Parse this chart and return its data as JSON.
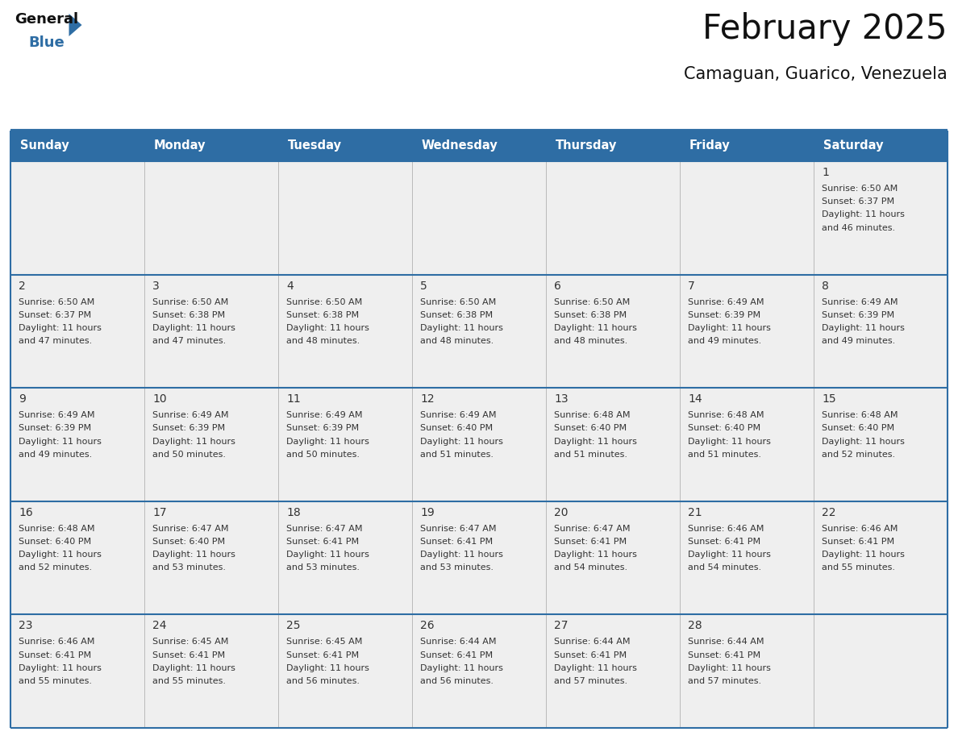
{
  "title": "February 2025",
  "subtitle": "Camaguan, Guarico, Venezuela",
  "days_of_week": [
    "Sunday",
    "Monday",
    "Tuesday",
    "Wednesday",
    "Thursday",
    "Friday",
    "Saturday"
  ],
  "header_bg": "#2E6DA4",
  "header_text": "#FFFFFF",
  "cell_bg": "#EFEFEF",
  "cell_bg_empty": "#FFFFFF",
  "separator_color": "#2E6DA4",
  "inner_line_color": "#CCCCCC",
  "day_number_color": "#333333",
  "cell_text_color": "#333333",
  "title_color": "#111111",
  "subtitle_color": "#111111",
  "logo_general_color": "#111111",
  "logo_blue_color": "#2E6DA4",
  "weeks": [
    [
      null,
      null,
      null,
      null,
      null,
      null,
      {
        "day": 1,
        "sunrise": "6:50 AM",
        "sunset": "6:37 PM",
        "daylight": "11 hours and 46 minutes."
      }
    ],
    [
      {
        "day": 2,
        "sunrise": "6:50 AM",
        "sunset": "6:37 PM",
        "daylight": "11 hours and 47 minutes."
      },
      {
        "day": 3,
        "sunrise": "6:50 AM",
        "sunset": "6:38 PM",
        "daylight": "11 hours and 47 minutes."
      },
      {
        "day": 4,
        "sunrise": "6:50 AM",
        "sunset": "6:38 PM",
        "daylight": "11 hours and 48 minutes."
      },
      {
        "day": 5,
        "sunrise": "6:50 AM",
        "sunset": "6:38 PM",
        "daylight": "11 hours and 48 minutes."
      },
      {
        "day": 6,
        "sunrise": "6:50 AM",
        "sunset": "6:38 PM",
        "daylight": "11 hours and 48 minutes."
      },
      {
        "day": 7,
        "sunrise": "6:49 AM",
        "sunset": "6:39 PM",
        "daylight": "11 hours and 49 minutes."
      },
      {
        "day": 8,
        "sunrise": "6:49 AM",
        "sunset": "6:39 PM",
        "daylight": "11 hours and 49 minutes."
      }
    ],
    [
      {
        "day": 9,
        "sunrise": "6:49 AM",
        "sunset": "6:39 PM",
        "daylight": "11 hours and 49 minutes."
      },
      {
        "day": 10,
        "sunrise": "6:49 AM",
        "sunset": "6:39 PM",
        "daylight": "11 hours and 50 minutes."
      },
      {
        "day": 11,
        "sunrise": "6:49 AM",
        "sunset": "6:39 PM",
        "daylight": "11 hours and 50 minutes."
      },
      {
        "day": 12,
        "sunrise": "6:49 AM",
        "sunset": "6:40 PM",
        "daylight": "11 hours and 51 minutes."
      },
      {
        "day": 13,
        "sunrise": "6:48 AM",
        "sunset": "6:40 PM",
        "daylight": "11 hours and 51 minutes."
      },
      {
        "day": 14,
        "sunrise": "6:48 AM",
        "sunset": "6:40 PM",
        "daylight": "11 hours and 51 minutes."
      },
      {
        "day": 15,
        "sunrise": "6:48 AM",
        "sunset": "6:40 PM",
        "daylight": "11 hours and 52 minutes."
      }
    ],
    [
      {
        "day": 16,
        "sunrise": "6:48 AM",
        "sunset": "6:40 PM",
        "daylight": "11 hours and 52 minutes."
      },
      {
        "day": 17,
        "sunrise": "6:47 AM",
        "sunset": "6:40 PM",
        "daylight": "11 hours and 53 minutes."
      },
      {
        "day": 18,
        "sunrise": "6:47 AM",
        "sunset": "6:41 PM",
        "daylight": "11 hours and 53 minutes."
      },
      {
        "day": 19,
        "sunrise": "6:47 AM",
        "sunset": "6:41 PM",
        "daylight": "11 hours and 53 minutes."
      },
      {
        "day": 20,
        "sunrise": "6:47 AM",
        "sunset": "6:41 PM",
        "daylight": "11 hours and 54 minutes."
      },
      {
        "day": 21,
        "sunrise": "6:46 AM",
        "sunset": "6:41 PM",
        "daylight": "11 hours and 54 minutes."
      },
      {
        "day": 22,
        "sunrise": "6:46 AM",
        "sunset": "6:41 PM",
        "daylight": "11 hours and 55 minutes."
      }
    ],
    [
      {
        "day": 23,
        "sunrise": "6:46 AM",
        "sunset": "6:41 PM",
        "daylight": "11 hours and 55 minutes."
      },
      {
        "day": 24,
        "sunrise": "6:45 AM",
        "sunset": "6:41 PM",
        "daylight": "11 hours and 55 minutes."
      },
      {
        "day": 25,
        "sunrise": "6:45 AM",
        "sunset": "6:41 PM",
        "daylight": "11 hours and 56 minutes."
      },
      {
        "day": 26,
        "sunrise": "6:44 AM",
        "sunset": "6:41 PM",
        "daylight": "11 hours and 56 minutes."
      },
      {
        "day": 27,
        "sunrise": "6:44 AM",
        "sunset": "6:41 PM",
        "daylight": "11 hours and 57 minutes."
      },
      {
        "day": 28,
        "sunrise": "6:44 AM",
        "sunset": "6:41 PM",
        "daylight": "11 hours and 57 minutes."
      },
      null
    ]
  ]
}
